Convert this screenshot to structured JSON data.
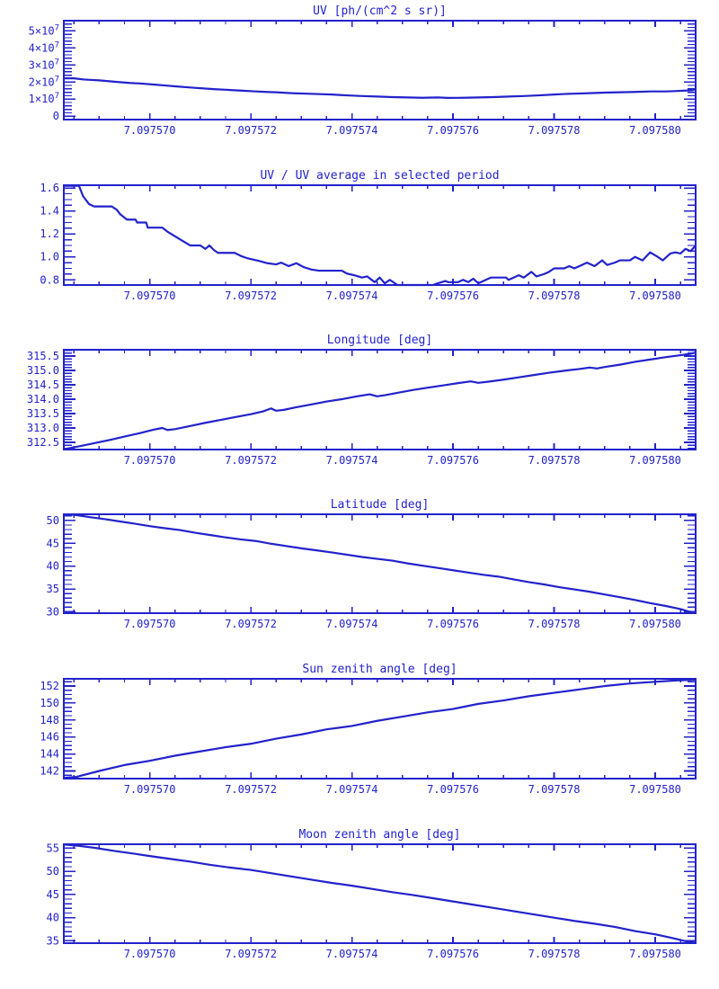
{
  "page": {
    "background": "#ffffff",
    "accent_color": "#2222cc",
    "description": "Six stacked time-series line plots, blue on white"
  },
  "x_axis": {
    "x_base": 7.0975683,
    "x_note": "axis value = x_base + t * 0.000001 ; t is the first element of each point pair",
    "lim_t": [
      0,
      12.5
    ],
    "major_ticks": [
      {
        "t": 1.7,
        "label": "7.097570"
      },
      {
        "t": 3.7,
        "label": "7.097572"
      },
      {
        "t": 5.7,
        "label": "7.097574"
      },
      {
        "t": 7.7,
        "label": "7.097576"
      },
      {
        "t": 9.7,
        "label": "7.097578"
      },
      {
        "t": 11.7,
        "label": "7.097580"
      }
    ],
    "minor_step_t": 0.5,
    "minor_start_t": 0.2
  },
  "chart_data": [
    {
      "type": "line",
      "title": "UV [ph/(cm^2 s sr)]",
      "ylabel": "",
      "y_multiplier": 10000000,
      "ylim": [
        -0.2,
        5.6
      ],
      "yticks": [
        {
          "v": 0,
          "label": "0"
        },
        {
          "v": 1,
          "label": "1×10^7"
        },
        {
          "v": 2,
          "label": "2×10^7"
        },
        {
          "v": 3,
          "label": "3×10^7"
        },
        {
          "v": 4,
          "label": "4×10^7"
        },
        {
          "v": 5,
          "label": "5×10^7"
        }
      ],
      "y_minor_step": 0.2,
      "points": [
        [
          0,
          2.22
        ],
        [
          0.2,
          2.22
        ],
        [
          0.4,
          2.15
        ],
        [
          0.7,
          2.1
        ],
        [
          1,
          2.02
        ],
        [
          1.3,
          1.95
        ],
        [
          1.5,
          1.92
        ],
        [
          1.8,
          1.85
        ],
        [
          2,
          1.8
        ],
        [
          2.2,
          1.75
        ],
        [
          2.5,
          1.68
        ],
        [
          2.8,
          1.62
        ],
        [
          3,
          1.58
        ],
        [
          3.2,
          1.55
        ],
        [
          3.5,
          1.5
        ],
        [
          3.8,
          1.45
        ],
        [
          4,
          1.42
        ],
        [
          4.2,
          1.4
        ],
        [
          4.5,
          1.35
        ],
        [
          4.8,
          1.32
        ],
        [
          5,
          1.3
        ],
        [
          5.3,
          1.27
        ],
        [
          5.6,
          1.22
        ],
        [
          5.9,
          1.18
        ],
        [
          6.2,
          1.15
        ],
        [
          6.5,
          1.12
        ],
        [
          6.8,
          1.1
        ],
        [
          7.1,
          1.08
        ],
        [
          7.4,
          1.1
        ],
        [
          7.6,
          1.07
        ],
        [
          7.9,
          1.08
        ],
        [
          8.2,
          1.1
        ],
        [
          8.5,
          1.12
        ],
        [
          8.8,
          1.15
        ],
        [
          9.1,
          1.18
        ],
        [
          9.4,
          1.22
        ],
        [
          9.7,
          1.27
        ],
        [
          9.9,
          1.3
        ],
        [
          10.1,
          1.32
        ],
        [
          10.4,
          1.35
        ],
        [
          10.7,
          1.38
        ],
        [
          11,
          1.4
        ],
        [
          11.3,
          1.42
        ],
        [
          11.6,
          1.45
        ],
        [
          11.9,
          1.45
        ],
        [
          12.1,
          1.47
        ],
        [
          12.3,
          1.5
        ],
        [
          12.45,
          1.52
        ],
        [
          12.5,
          1.62
        ]
      ]
    },
    {
      "type": "line",
      "title": "UV / UV average in selected period",
      "ylabel": "",
      "y_multiplier": 1,
      "ylim": [
        0.755,
        1.625
      ],
      "yticks": [
        {
          "v": 0.8,
          "label": "0.8"
        },
        {
          "v": 1.0,
          "label": "1.0"
        },
        {
          "v": 1.2,
          "label": "1.2"
        },
        {
          "v": 1.4,
          "label": "1.4"
        },
        {
          "v": 1.6,
          "label": "1.6"
        }
      ],
      "y_minor_step": 0.05,
      "points": [
        [
          0,
          1.62
        ],
        [
          0.3,
          1.62
        ],
        [
          0.38,
          1.53
        ],
        [
          0.5,
          1.46
        ],
        [
          0.6,
          1.44
        ],
        [
          0.95,
          1.44
        ],
        [
          1.05,
          1.41
        ],
        [
          1.12,
          1.37
        ],
        [
          1.25,
          1.325
        ],
        [
          1.42,
          1.325
        ],
        [
          1.45,
          1.3
        ],
        [
          1.63,
          1.3
        ],
        [
          1.66,
          1.255
        ],
        [
          1.95,
          1.255
        ],
        [
          2.05,
          1.22
        ],
        [
          2.2,
          1.18
        ],
        [
          2.35,
          1.14
        ],
        [
          2.5,
          1.1
        ],
        [
          2.7,
          1.1
        ],
        [
          2.8,
          1.07
        ],
        [
          2.88,
          1.1
        ],
        [
          2.97,
          1.06
        ],
        [
          3.05,
          1.035
        ],
        [
          3.38,
          1.035
        ],
        [
          3.52,
          1.005
        ],
        [
          3.62,
          0.99
        ],
        [
          3.86,
          0.965
        ],
        [
          4.03,
          0.945
        ],
        [
          4.2,
          0.935
        ],
        [
          4.3,
          0.95
        ],
        [
          4.45,
          0.92
        ],
        [
          4.6,
          0.945
        ],
        [
          4.75,
          0.91
        ],
        [
          4.9,
          0.89
        ],
        [
          5.05,
          0.88
        ],
        [
          5.5,
          0.88
        ],
        [
          5.6,
          0.855
        ],
        [
          5.75,
          0.84
        ],
        [
          5.9,
          0.82
        ],
        [
          6,
          0.83
        ],
        [
          6.15,
          0.78
        ],
        [
          6.25,
          0.82
        ],
        [
          6.35,
          0.77
        ],
        [
          6.45,
          0.8
        ],
        [
          6.6,
          0.755
        ],
        [
          7.3,
          0.755
        ],
        [
          7.4,
          0.77
        ],
        [
          7.55,
          0.79
        ],
        [
          7.6,
          0.78
        ],
        [
          7.8,
          0.78
        ],
        [
          7.9,
          0.8
        ],
        [
          8,
          0.78
        ],
        [
          8.1,
          0.81
        ],
        [
          8.2,
          0.77
        ],
        [
          8.35,
          0.8
        ],
        [
          8.45,
          0.82
        ],
        [
          8.75,
          0.82
        ],
        [
          8.8,
          0.8
        ],
        [
          8.9,
          0.82
        ],
        [
          9,
          0.84
        ],
        [
          9.1,
          0.82
        ],
        [
          9.25,
          0.87
        ],
        [
          9.35,
          0.83
        ],
        [
          9.5,
          0.85
        ],
        [
          9.6,
          0.87
        ],
        [
          9.7,
          0.9
        ],
        [
          9.9,
          0.9
        ],
        [
          10,
          0.92
        ],
        [
          10.1,
          0.9
        ],
        [
          10.2,
          0.92
        ],
        [
          10.35,
          0.95
        ],
        [
          10.5,
          0.92
        ],
        [
          10.65,
          0.97
        ],
        [
          10.75,
          0.93
        ],
        [
          10.9,
          0.95
        ],
        [
          11,
          0.97
        ],
        [
          11.2,
          0.97
        ],
        [
          11.3,
          1.0
        ],
        [
          11.45,
          0.97
        ],
        [
          11.6,
          1.04
        ],
        [
          11.75,
          1.0
        ],
        [
          11.85,
          0.97
        ],
        [
          12,
          1.03
        ],
        [
          12.1,
          1.04
        ],
        [
          12.2,
          1.03
        ],
        [
          12.3,
          1.07
        ],
        [
          12.4,
          1.05
        ],
        [
          12.5,
          1.1
        ]
      ]
    },
    {
      "type": "line",
      "title": "Longitude [deg]",
      "ylabel": "",
      "y_multiplier": 1,
      "ylim": [
        312.25,
        315.72
      ],
      "yticks": [
        {
          "v": 312.5,
          "label": "312.5"
        },
        {
          "v": 313.0,
          "label": "313.0"
        },
        {
          "v": 313.5,
          "label": "313.5"
        },
        {
          "v": 314.0,
          "label": "314.0"
        },
        {
          "v": 314.5,
          "label": "314.5"
        },
        {
          "v": 315.0,
          "label": "315.0"
        },
        {
          "v": 315.5,
          "label": "315.5"
        }
      ],
      "y_minor_step": 0.1,
      "points": [
        [
          0,
          312.26
        ],
        [
          0.3,
          312.36
        ],
        [
          0.6,
          312.47
        ],
        [
          0.9,
          312.58
        ],
        [
          1.2,
          312.7
        ],
        [
          1.5,
          312.82
        ],
        [
          1.8,
          312.95
        ],
        [
          1.95,
          313.0
        ],
        [
          2.05,
          312.93
        ],
        [
          2.2,
          312.96
        ],
        [
          2.5,
          313.07
        ],
        [
          2.8,
          313.18
        ],
        [
          3.1,
          313.28
        ],
        [
          3.4,
          313.38
        ],
        [
          3.7,
          313.48
        ],
        [
          3.95,
          313.58
        ],
        [
          4.1,
          313.68
        ],
        [
          4.2,
          313.6
        ],
        [
          4.35,
          313.63
        ],
        [
          4.6,
          313.72
        ],
        [
          4.9,
          313.82
        ],
        [
          5.2,
          313.92
        ],
        [
          5.5,
          314.0
        ],
        [
          5.8,
          314.1
        ],
        [
          6.05,
          314.17
        ],
        [
          6.2,
          314.1
        ],
        [
          6.35,
          314.14
        ],
        [
          6.6,
          314.22
        ],
        [
          6.9,
          314.32
        ],
        [
          7.2,
          314.4
        ],
        [
          7.5,
          314.48
        ],
        [
          7.8,
          314.56
        ],
        [
          8.05,
          314.62
        ],
        [
          8.2,
          314.57
        ],
        [
          8.4,
          314.61
        ],
        [
          8.7,
          314.68
        ],
        [
          9,
          314.76
        ],
        [
          9.3,
          314.84
        ],
        [
          9.6,
          314.92
        ],
        [
          9.9,
          314.99
        ],
        [
          10.2,
          315.05
        ],
        [
          10.4,
          315.1
        ],
        [
          10.55,
          315.07
        ],
        [
          10.7,
          315.12
        ],
        [
          11,
          315.2
        ],
        [
          11.3,
          315.3
        ],
        [
          11.6,
          315.38
        ],
        [
          11.9,
          315.46
        ],
        [
          12.2,
          315.53
        ],
        [
          12.4,
          315.58
        ],
        [
          12.5,
          315.62
        ]
      ]
    },
    {
      "type": "line",
      "title": "Latitude [deg]",
      "ylabel": "",
      "y_multiplier": 1,
      "ylim": [
        29.7,
        51.35
      ],
      "yticks": [
        {
          "v": 30,
          "label": "30"
        },
        {
          "v": 35,
          "label": "35"
        },
        {
          "v": 40,
          "label": "40"
        },
        {
          "v": 45,
          "label": "45"
        },
        {
          "v": 50,
          "label": "50"
        }
      ],
      "y_minor_step": 1,
      "points": [
        [
          0,
          51.3
        ],
        [
          0.2,
          51.25
        ],
        [
          0.5,
          50.75
        ],
        [
          0.8,
          50.3
        ],
        [
          1.1,
          49.8
        ],
        [
          1.4,
          49.3
        ],
        [
          1.7,
          48.75
        ],
        [
          2,
          48.3
        ],
        [
          2.3,
          47.9
        ],
        [
          2.6,
          47.3
        ],
        [
          2.9,
          46.8
        ],
        [
          3.2,
          46.3
        ],
        [
          3.5,
          45.85
        ],
        [
          3.8,
          45.5
        ],
        [
          4.1,
          44.9
        ],
        [
          4.4,
          44.4
        ],
        [
          4.7,
          43.9
        ],
        [
          5,
          43.45
        ],
        [
          5.3,
          43.0
        ],
        [
          5.6,
          42.5
        ],
        [
          5.9,
          42.0
        ],
        [
          6.2,
          41.6
        ],
        [
          6.5,
          41.2
        ],
        [
          6.8,
          40.6
        ],
        [
          7.1,
          40.1
        ],
        [
          7.4,
          39.6
        ],
        [
          7.7,
          39.1
        ],
        [
          8,
          38.6
        ],
        [
          8.3,
          38.1
        ],
        [
          8.6,
          37.7
        ],
        [
          8.9,
          37.1
        ],
        [
          9.2,
          36.5
        ],
        [
          9.5,
          36.0
        ],
        [
          9.8,
          35.4
        ],
        [
          10.1,
          34.9
        ],
        [
          10.4,
          34.4
        ],
        [
          10.7,
          33.8
        ],
        [
          11,
          33.2
        ],
        [
          11.3,
          32.6
        ],
        [
          11.6,
          31.9
        ],
        [
          11.9,
          31.3
        ],
        [
          12.2,
          30.6
        ],
        [
          12.35,
          30.1
        ],
        [
          12.5,
          29.8
        ]
      ]
    },
    {
      "type": "line",
      "title": "Sun zenith angle [deg]",
      "ylabel": "",
      "y_multiplier": 1,
      "ylim": [
        141.1,
        152.85
      ],
      "yticks": [
        {
          "v": 142,
          "label": "142"
        },
        {
          "v": 144,
          "label": "144"
        },
        {
          "v": 146,
          "label": "146"
        },
        {
          "v": 148,
          "label": "148"
        },
        {
          "v": 150,
          "label": "150"
        },
        {
          "v": 152,
          "label": "152"
        }
      ],
      "y_minor_step": 0.5,
      "points": [
        [
          0,
          141.2
        ],
        [
          0.25,
          141.3
        ],
        [
          0.7,
          142.0
        ],
        [
          1.2,
          142.7
        ],
        [
          1.7,
          143.2
        ],
        [
          2.2,
          143.8
        ],
        [
          2.7,
          144.3
        ],
        [
          3.2,
          144.8
        ],
        [
          3.7,
          145.2
        ],
        [
          4.2,
          145.8
        ],
        [
          4.7,
          146.3
        ],
        [
          5.2,
          146.9
        ],
        [
          5.7,
          147.3
        ],
        [
          6.2,
          147.9
        ],
        [
          6.7,
          148.4
        ],
        [
          7.2,
          148.9
        ],
        [
          7.7,
          149.3
        ],
        [
          8.2,
          149.9
        ],
        [
          8.7,
          150.3
        ],
        [
          9.2,
          150.8
        ],
        [
          9.7,
          151.2
        ],
        [
          10.2,
          151.6
        ],
        [
          10.7,
          152.0
        ],
        [
          11.2,
          152.3
        ],
        [
          11.7,
          152.5
        ],
        [
          12.1,
          152.65
        ],
        [
          12.5,
          152.75
        ]
      ]
    },
    {
      "type": "line",
      "title": "Moon zenith angle [deg]",
      "ylabel": "",
      "y_multiplier": 1,
      "ylim": [
        34.5,
        55.85
      ],
      "yticks": [
        {
          "v": 35,
          "label": "35"
        },
        {
          "v": 40,
          "label": "40"
        },
        {
          "v": 45,
          "label": "45"
        },
        {
          "v": 50,
          "label": "50"
        },
        {
          "v": 55,
          "label": "55"
        }
      ],
      "y_minor_step": 1,
      "points": [
        [
          0,
          55.8
        ],
        [
          0.3,
          55.5
        ],
        [
          0.6,
          55.1
        ],
        [
          1,
          54.4
        ],
        [
          1.4,
          53.8
        ],
        [
          1.7,
          53.3
        ],
        [
          2.1,
          52.7
        ],
        [
          2.5,
          52.1
        ],
        [
          2.9,
          51.4
        ],
        [
          3.3,
          50.8
        ],
        [
          3.7,
          50.3
        ],
        [
          4.1,
          49.6
        ],
        [
          4.5,
          48.9
        ],
        [
          4.9,
          48.2
        ],
        [
          5.3,
          47.5
        ],
        [
          5.7,
          46.9
        ],
        [
          6.1,
          46.2
        ],
        [
          6.5,
          45.5
        ],
        [
          6.9,
          44.9
        ],
        [
          7.3,
          44.2
        ],
        [
          7.7,
          43.5
        ],
        [
          8.1,
          42.8
        ],
        [
          8.5,
          42.1
        ],
        [
          8.9,
          41.4
        ],
        [
          9.3,
          40.7
        ],
        [
          9.7,
          40.0
        ],
        [
          10.1,
          39.3
        ],
        [
          10.5,
          38.7
        ],
        [
          10.9,
          38.0
        ],
        [
          11.3,
          37.1
        ],
        [
          11.7,
          36.4
        ],
        [
          12,
          35.7
        ],
        [
          12.2,
          35.2
        ],
        [
          12.35,
          34.8
        ],
        [
          12.5,
          34.6
        ]
      ]
    }
  ]
}
